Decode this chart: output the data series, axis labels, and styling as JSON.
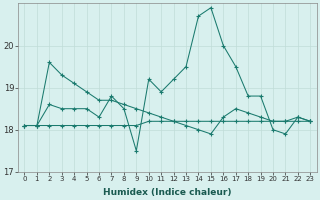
{
  "xlabel": "Humidex (Indice chaleur)",
  "background_color": "#d8f0ee",
  "grid_color": "#c0ddd8",
  "line_color": "#1a7a6e",
  "xlim": [
    -0.5,
    23.5
  ],
  "ylim": [
    17,
    21
  ],
  "yticks": [
    17,
    18,
    19,
    20
  ],
  "xticks": [
    0,
    1,
    2,
    3,
    4,
    5,
    6,
    7,
    8,
    9,
    10,
    11,
    12,
    13,
    14,
    15,
    16,
    17,
    18,
    19,
    20,
    21,
    22,
    23
  ],
  "series": [
    [
      18.1,
      18.1,
      19.6,
      19.3,
      19.1,
      18.9,
      18.7,
      18.7,
      18.6,
      18.5,
      18.4,
      18.3,
      18.2,
      18.1,
      18.0,
      17.9,
      18.3,
      18.5,
      18.4,
      18.3,
      18.2,
      18.2,
      18.3,
      18.2
    ],
    [
      18.1,
      18.1,
      18.6,
      18.5,
      18.5,
      18.5,
      18.3,
      18.8,
      18.5,
      17.5,
      19.2,
      18.9,
      19.2,
      19.5,
      20.7,
      20.9,
      20.0,
      19.5,
      18.8,
      18.8,
      18.0,
      17.9,
      18.3,
      18.2
    ],
    [
      18.1,
      18.1,
      18.1,
      18.1,
      18.1,
      18.1,
      18.1,
      18.1,
      18.1,
      18.1,
      18.2,
      18.2,
      18.2,
      18.2,
      18.2,
      18.2,
      18.2,
      18.2,
      18.2,
      18.2,
      18.2,
      18.2,
      18.2,
      18.2
    ]
  ]
}
